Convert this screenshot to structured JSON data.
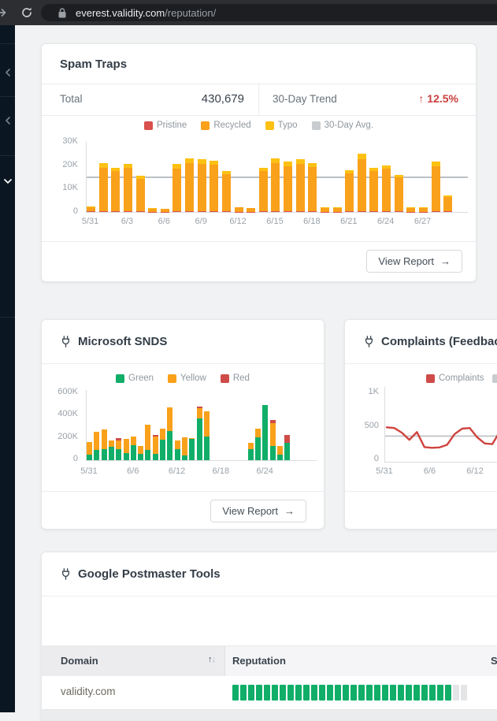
{
  "browser": {
    "url_host": "everest.validity.com",
    "url_path": "/reputation/"
  },
  "sidebar": {
    "items": [
      {
        "icon": "chevron-left"
      },
      {
        "icon": "chevron-left"
      },
      {
        "icon": "chevron-down"
      }
    ]
  },
  "spam_traps": {
    "title": "Spam Traps",
    "total_label": "Total",
    "total_value": "430,679",
    "trend_label": "30-Day Trend",
    "trend_arrow": "↑",
    "trend_value": "12.5%",
    "view_report_label": "View Report",
    "view_report_arrow": "→",
    "chart_data": {
      "type": "bar",
      "stacked": true,
      "unit": "thousands",
      "ylim": [
        0,
        30
      ],
      "grid": false,
      "legend_position": "top-center",
      "legend": [
        {
          "key": "pristine",
          "label": "Pristine",
          "color": "#d9504c"
        },
        {
          "key": "recycled",
          "label": "Recycled",
          "color": "#f9a11b"
        },
        {
          "key": "typo",
          "label": "Typo",
          "color": "#fdc113"
        },
        {
          "key": "avg",
          "label": "30-Day Avg.",
          "color": "#c9ccce"
        }
      ],
      "ylabel_ticks": [
        "30K",
        "20K",
        "10K",
        "0"
      ],
      "avg_line_value": 14.4,
      "xticks": [
        "5/31",
        "6/3",
        "6/6",
        "6/9",
        "6/12",
        "6/15",
        "6/18",
        "6/21",
        "6/24",
        "6/27"
      ],
      "bars": [
        {
          "date": "5/31",
          "pristine": 0.2,
          "recycled": 2.0,
          "typo": 0.3
        },
        {
          "date": "6/1",
          "pristine": 0.4,
          "recycled": 18.6,
          "typo": 2.0
        },
        {
          "date": "6/2",
          "pristine": 0.4,
          "recycled": 17.2,
          "typo": 1.4
        },
        {
          "date": "6/3",
          "pristine": 0.4,
          "recycled": 18.4,
          "typo": 1.7
        },
        {
          "date": "6/4",
          "pristine": 0.3,
          "recycled": 14.0,
          "typo": 1.2
        },
        {
          "date": "6/5",
          "pristine": 0.1,
          "recycled": 1.3,
          "typo": 0.2
        },
        {
          "date": "6/6",
          "pristine": 0.1,
          "recycled": 1.1,
          "typo": 0.2
        },
        {
          "date": "6/7",
          "pristine": 0.4,
          "recycled": 18.3,
          "typo": 1.8
        },
        {
          "date": "6/8",
          "pristine": 0.4,
          "recycled": 20.6,
          "typo": 2.0
        },
        {
          "date": "6/9",
          "pristine": 0.4,
          "recycled": 20.3,
          "typo": 1.8
        },
        {
          "date": "6/10",
          "pristine": 0.4,
          "recycled": 19.8,
          "typo": 1.8
        },
        {
          "date": "6/11",
          "pristine": 0.4,
          "recycled": 15.8,
          "typo": 1.3
        },
        {
          "date": "6/12",
          "pristine": 0.1,
          "recycled": 1.9,
          "typo": 0.2
        },
        {
          "date": "6/13",
          "pristine": 0.1,
          "recycled": 1.5,
          "typo": 0.2
        },
        {
          "date": "6/14",
          "pristine": 0.4,
          "recycled": 17.1,
          "typo": 1.5
        },
        {
          "date": "6/15",
          "pristine": 0.4,
          "recycled": 20.6,
          "typo": 2.0
        },
        {
          "date": "6/16",
          "pristine": 0.4,
          "recycled": 19.3,
          "typo": 1.8
        },
        {
          "date": "6/17",
          "pristine": 0.4,
          "recycled": 20.3,
          "typo": 1.8
        },
        {
          "date": "6/18",
          "pristine": 0.4,
          "recycled": 18.9,
          "typo": 1.7
        },
        {
          "date": "6/19",
          "pristine": 0.1,
          "recycled": 1.7,
          "typo": 0.2
        },
        {
          "date": "6/20",
          "pristine": 0.1,
          "recycled": 1.7,
          "typo": 0.2
        },
        {
          "date": "6/21",
          "pristine": 0.4,
          "recycled": 16.1,
          "typo": 1.5
        },
        {
          "date": "6/22",
          "pristine": 0.4,
          "recycled": 22.3,
          "typo": 2.3
        },
        {
          "date": "6/23",
          "pristine": 0.4,
          "recycled": 17.1,
          "typo": 1.5
        },
        {
          "date": "6/24",
          "pristine": 0.4,
          "recycled": 18.1,
          "typo": 1.5
        },
        {
          "date": "6/25",
          "pristine": 0.3,
          "recycled": 14.4,
          "typo": 1.3
        },
        {
          "date": "6/26",
          "pristine": 0.1,
          "recycled": 1.7,
          "typo": 0.2
        },
        {
          "date": "6/27",
          "pristine": 0.1,
          "recycled": 1.7,
          "typo": 0.2
        },
        {
          "date": "6/28",
          "pristine": 0.4,
          "recycled": 19.3,
          "typo": 1.8
        },
        {
          "date": "6/29",
          "pristine": 0.2,
          "recycled": 6.3,
          "typo": 0.5
        }
      ]
    }
  },
  "snds": {
    "title": "Microsoft SNDS",
    "view_report_label": "View Report",
    "view_report_arrow": "→",
    "chart_data": {
      "type": "bar",
      "stacked": true,
      "unit": "thousands",
      "ylim": [
        0,
        600
      ],
      "grid": false,
      "legend_position": "top-center",
      "legend": [
        {
          "key": "green",
          "label": "Green",
          "color": "#10ae68"
        },
        {
          "key": "yellow",
          "label": "Yellow",
          "color": "#f9a11b"
        },
        {
          "key": "red",
          "label": "Red",
          "color": "#cf4b48"
        }
      ],
      "ylabel_ticks": [
        "600K",
        "400K",
        "200K",
        "0"
      ],
      "xticks": [
        "5/31",
        "6/6",
        "6/12",
        "6/18",
        "6/24"
      ],
      "bars": [
        {
          "date": "5/31",
          "green": 50,
          "yellow": 110,
          "red": 0
        },
        {
          "date": "6/1",
          "green": 90,
          "yellow": 160,
          "red": 0
        },
        {
          "date": "6/2",
          "green": 95,
          "yellow": 175,
          "red": 0
        },
        {
          "date": "6/3",
          "green": 115,
          "yellow": 60,
          "red": 0
        },
        {
          "date": "6/4",
          "green": 100,
          "yellow": 70,
          "red": 25
        },
        {
          "date": "6/5",
          "green": 65,
          "yellow": 125,
          "red": 0
        },
        {
          "date": "6/6",
          "green": 130,
          "yellow": 80,
          "red": 0
        },
        {
          "date": "6/7",
          "green": 55,
          "yellow": 70,
          "red": 0
        },
        {
          "date": "6/8",
          "green": 90,
          "yellow": 220,
          "red": 0
        },
        {
          "date": "6/9",
          "green": 55,
          "yellow": 150,
          "red": 15
        },
        {
          "date": "6/10",
          "green": 180,
          "yellow": 95,
          "red": 0
        },
        {
          "date": "6/11",
          "green": 255,
          "yellow": 205,
          "red": 0
        },
        {
          "date": "6/12",
          "green": 95,
          "yellow": 75,
          "red": 0
        },
        {
          "date": "6/13",
          "green": 40,
          "yellow": 160,
          "red": 0
        },
        {
          "date": "6/14",
          "green": 185,
          "yellow": 10,
          "red": 0
        },
        {
          "date": "6/15",
          "green": 365,
          "yellow": 90,
          "red": 15
        },
        {
          "date": "6/16",
          "green": 210,
          "yellow": 220,
          "red": 0
        },
        {
          "date": "6/17",
          "green": 0,
          "yellow": 0,
          "red": 0
        },
        {
          "date": "6/18",
          "green": 0,
          "yellow": 0,
          "red": 0
        },
        {
          "date": "6/19",
          "green": 0,
          "yellow": 0,
          "red": 0
        },
        {
          "date": "6/20",
          "green": 0,
          "yellow": 0,
          "red": 0
        },
        {
          "date": "6/21",
          "green": 0,
          "yellow": 0,
          "red": 0
        },
        {
          "date": "6/22",
          "green": 100,
          "yellow": 55,
          "red": 0
        },
        {
          "date": "6/23",
          "green": 200,
          "yellow": 75,
          "red": 0
        },
        {
          "date": "6/24",
          "green": 485,
          "yellow": 0,
          "red": 0
        },
        {
          "date": "6/25",
          "green": 125,
          "yellow": 200,
          "red": 25
        },
        {
          "date": "6/26",
          "green": 50,
          "yellow": 75,
          "red": 0
        },
        {
          "date": "6/27",
          "green": 155,
          "yellow": 0,
          "red": 65
        }
      ]
    }
  },
  "complaints": {
    "title": "Complaints (Feedback Loops)",
    "chart_data": {
      "type": "line",
      "ylim": [
        0,
        1000
      ],
      "grid": false,
      "legend_position": "top-center",
      "legend": [
        {
          "key": "complaints",
          "label": "Complaints",
          "color": "#cf4b48"
        },
        {
          "key": "avg",
          "label": "",
          "color": "#c9ccce"
        }
      ],
      "ylabel_ticks": [
        "1K",
        "500",
        "0"
      ],
      "avg_line_value": 360,
      "line_color": "#cf443f",
      "xticks": [
        "5/31",
        "6/6",
        "6/12"
      ],
      "values": [
        490,
        480,
        410,
        305,
        420,
        195,
        185,
        190,
        230,
        390,
        470,
        480,
        340,
        250,
        240,
        430
      ]
    }
  },
  "postmaster": {
    "title": "Google Postmaster Tools",
    "table": {
      "col_domain": "Domain",
      "col_reputation": "Reputation",
      "col_next_partial": "S",
      "rows": [
        {
          "domain": "validity.com",
          "reputation_segments_total": 30,
          "reputation_segments_filled": 28,
          "reputation_fill_color": "#10ae68",
          "reputation_empty_color": "#e4e5e7"
        }
      ]
    }
  }
}
